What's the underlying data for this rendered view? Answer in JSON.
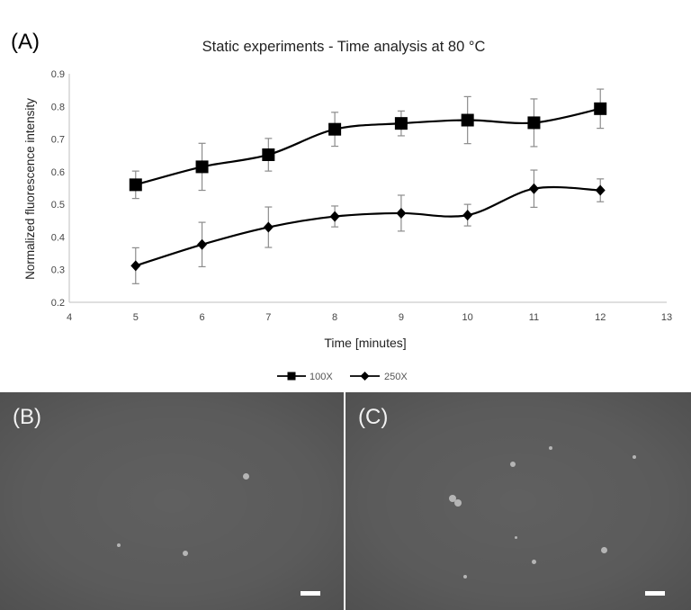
{
  "panel_labels": {
    "a": "(A)",
    "b": "(B)",
    "c": "(C)"
  },
  "chart_data": {
    "type": "line",
    "title": "Static experiments - Time analysis at 80 °C",
    "xlabel": "Time [minutes]",
    "ylabel": "Normalized fluorescence intensity",
    "xlim": [
      4,
      13
    ],
    "ylim": [
      0.2,
      0.9
    ],
    "x_ticks": [
      4,
      5,
      6,
      7,
      8,
      9,
      10,
      11,
      12,
      13
    ],
    "y_ticks": [
      0.2,
      0.3,
      0.4,
      0.5,
      0.6,
      0.7,
      0.8,
      0.9
    ],
    "x_tick_labels": [
      "4",
      "5",
      "6",
      "7",
      "8",
      "9",
      "10",
      "11",
      "12",
      "13"
    ],
    "y_tick_labels": [
      "0.2",
      "0.3",
      "0.4",
      "0.5",
      "0.6",
      "0.7",
      "0.8",
      "0.9"
    ],
    "grid": false,
    "legend_position": "bottom-center",
    "x": [
      5,
      6,
      7,
      8,
      9,
      10,
      11,
      12
    ],
    "series": [
      {
        "name": "100X",
        "marker": "square",
        "color": "#000000",
        "values": [
          0.56,
          0.615,
          0.652,
          0.73,
          0.748,
          0.758,
          0.75,
          0.793
        ],
        "errors": [
          0.042,
          0.072,
          0.05,
          0.052,
          0.038,
          0.072,
          0.073,
          0.06
        ]
      },
      {
        "name": "250X",
        "marker": "diamond",
        "color": "#000000",
        "values": [
          0.312,
          0.377,
          0.43,
          0.463,
          0.473,
          0.467,
          0.548,
          0.543
        ],
        "errors": [
          0.055,
          0.068,
          0.062,
          0.032,
          0.055,
          0.033,
          0.057,
          0.035
        ]
      }
    ]
  },
  "micrographs": [
    {
      "id": "B",
      "background": "#5b5b5b"
    },
    {
      "id": "C",
      "background": "#5b5b5b"
    }
  ]
}
